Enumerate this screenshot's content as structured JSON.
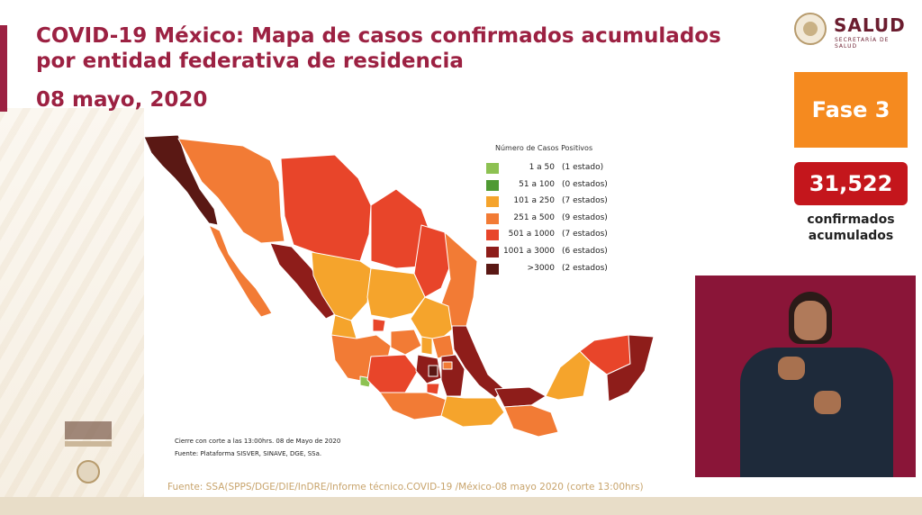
{
  "title": "COVID-19 México: Mapa de casos confirmados acumulados por entidad federativa de residencia",
  "date": "08 mayo, 2020",
  "logo": {
    "name": "SALUD",
    "subtitle": "SECRETARÍA DE SALUD"
  },
  "phase": "Fase 3",
  "total_cases": "31,522",
  "total_label": "confirmados acumulados",
  "legend": {
    "title": "Número de Casos Positivos",
    "items": [
      {
        "range": "1 a 50",
        "states": "(1 estado)",
        "color": "#8dc152"
      },
      {
        "range": "51 a 100",
        "states": "(0 estados)",
        "color": "#4f9a33"
      },
      {
        "range": "101 a 250",
        "states": "(7 estados)",
        "color": "#f5a42c"
      },
      {
        "range": "251 a 500",
        "states": "(9 estados)",
        "color": "#f27b35"
      },
      {
        "range": "501 a 1000",
        "states": "(7 estados)",
        "color": "#e8452a"
      },
      {
        "range": "1001 a 3000",
        "states": "(6 estados)",
        "color": "#8e1d1a"
      },
      {
        "range": ">3000",
        "states": "(2 estados)",
        "color": "#5a1814"
      }
    ]
  },
  "note_cutoff": "Cierre con corte a las 13:00hrs. 08 de Mayo de 2020",
  "note_source": "Fuente: Plataforma SISVER, SINAVE, DGE, SSa.",
  "footer_source": "Fuente: SSA(SPPS/DGE/DIE/InDRE/Informe técnico.COVID-19 /México-08 mayo 2020 (corte 13:00hrs)",
  "colors": {
    "brand": "#9c2142",
    "phase": "#f58a1f",
    "total": "#c4161c"
  }
}
